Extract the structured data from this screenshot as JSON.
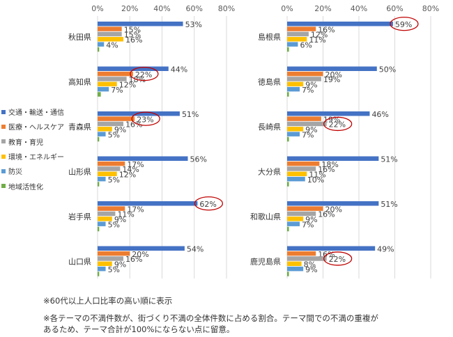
{
  "legend_items": [
    "交通・輸送・通信",
    "医療・ヘルスケア",
    "教育・育児",
    "環境・エネルギー",
    "防災",
    "地域活性化"
  ],
  "notes": [
    "※60代以上人口比率の高い順に表示",
    "※各テーマの不満件数が、街づくり不満の全体件数に占める割合。テーマ間での不満の重複が\nあるため、テーマ合計が100%にならない点に留意。"
  ],
  "colors": {
    "series": [
      "#4472C4",
      "#ED7D31",
      "#A5A5A5",
      "#FFC000",
      "#5B9BD5",
      "#70AD47"
    ],
    "highlight_circle": "#C00000",
    "gridline": "#D9D9D9",
    "axis_text": "#595959"
  },
  "chart_data": [
    {
      "type": "bar",
      "orientation": "horizontal",
      "xlim": [
        0,
        80
      ],
      "x_ticks": [
        "0%",
        "20%",
        "40%",
        "60%",
        "80%"
      ],
      "x_tick_values": [
        0,
        20,
        40,
        60,
        80
      ],
      "grid": true,
      "legend_position": "left",
      "series_names": [
        "交通・輸送・通信",
        "医療・ヘルスケア",
        "教育・育児",
        "環境・エネルギー",
        "防災",
        "地域活性化"
      ],
      "categories": [
        "秋田県",
        "高知県",
        "青森県",
        "山形県",
        "岩手県",
        "山口県"
      ],
      "values": [
        [
          53,
          15,
          15,
          16,
          4,
          1
        ],
        [
          44,
          22,
          18,
          12,
          7,
          2
        ],
        [
          51,
          23,
          16,
          9,
          5,
          1
        ],
        [
          56,
          17,
          14,
          12,
          5,
          1
        ],
        [
          62,
          17,
          11,
          9,
          5,
          1
        ],
        [
          54,
          20,
          16,
          9,
          5,
          1
        ]
      ],
      "labels": [
        [
          "53%",
          "15%",
          "15%",
          "16%",
          "4%",
          ""
        ],
        [
          "44%",
          "22%",
          "18%",
          "12%",
          "7%",
          ""
        ],
        [
          "51%",
          "23%",
          "16%",
          "9%",
          "5%",
          ""
        ],
        [
          "56%",
          "17%",
          "14%",
          "12%",
          "5%",
          ""
        ],
        [
          "62%",
          "17%",
          "11%",
          "9%",
          "5%",
          ""
        ],
        [
          "54%",
          "20%",
          "16%",
          "9%",
          "5%",
          ""
        ]
      ],
      "highlighted": [
        [
          1,
          1
        ],
        [
          2,
          1
        ],
        [
          4,
          0
        ]
      ]
    },
    {
      "type": "bar",
      "orientation": "horizontal",
      "xlim": [
        0,
        80
      ],
      "x_ticks": [
        "0%",
        "20%",
        "40%",
        "60%",
        "80%"
      ],
      "x_tick_values": [
        0,
        20,
        40,
        60,
        80
      ],
      "grid": true,
      "series_names": [
        "交通・輸送・通信",
        "医療・ヘルスケア",
        "教育・育児",
        "環境・エネルギー",
        "防災",
        "地域活性化"
      ],
      "categories": [
        "島根県",
        "徳島県",
        "長崎県",
        "大分県",
        "和歌山県",
        "鹿児島県"
      ],
      "values": [
        [
          59,
          16,
          12,
          11,
          6,
          1
        ],
        [
          50,
          20,
          19,
          9,
          7,
          1
        ],
        [
          46,
          19,
          22,
          9,
          7,
          1
        ],
        [
          51,
          18,
          16,
          11,
          10,
          1
        ],
        [
          51,
          20,
          16,
          9,
          7,
          1
        ],
        [
          49,
          16,
          22,
          8,
          9,
          1
        ]
      ],
      "labels": [
        [
          "59%",
          "16%",
          "12%",
          "11%",
          "6%",
          ""
        ],
        [
          "50%",
          "20%",
          "19%",
          "9%",
          "7%",
          ""
        ],
        [
          "46%",
          "19%",
          "22%",
          "9%",
          "7%",
          ""
        ],
        [
          "51%",
          "18%",
          "16%",
          "11%",
          "10%",
          ""
        ],
        [
          "51%",
          "20%",
          "16%",
          "9%",
          "7%",
          ""
        ],
        [
          "49%",
          "16%",
          "22%",
          "8%",
          "9%",
          ""
        ]
      ],
      "highlighted": [
        [
          0,
          0
        ],
        [
          2,
          2
        ],
        [
          5,
          2
        ]
      ]
    }
  ]
}
